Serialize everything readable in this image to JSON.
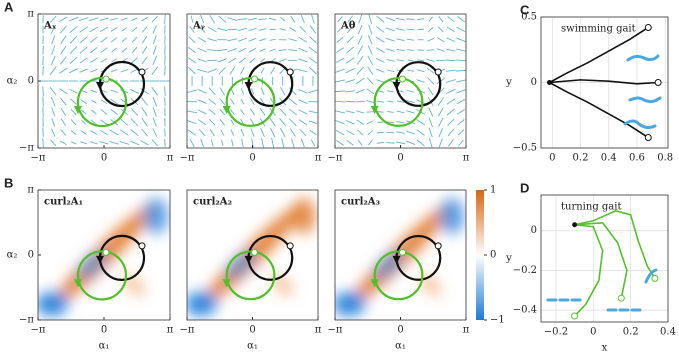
{
  "chart_data": [
    {
      "type": "quiver",
      "panel": "A",
      "title": "Aₓ",
      "ylabel": "α₂",
      "xlim": [
        -3.14159,
        3.14159
      ],
      "ylim": [
        -3.14159,
        3.14159
      ],
      "xticks": [
        {
          "value": -3.14159,
          "label": "−π"
        },
        0,
        {
          "value": 3.14159,
          "label": "π"
        }
      ],
      "yticks": [
        {
          "value": -3.14159,
          "label": "−π"
        },
        0,
        {
          "value": 3.14159,
          "label": "π"
        }
      ]
    },
    {
      "type": "quiver",
      "title": "Aᵧ",
      "xlim": [
        -3.14159,
        3.14159
      ],
      "ylim": [
        -3.14159,
        3.14159
      ],
      "xticks": [
        {
          "value": -3.14159,
          "label": "−π"
        },
        0,
        {
          "value": 3.14159,
          "label": "π"
        }
      ]
    },
    {
      "type": "quiver",
      "title": "Aθ",
      "xlim": [
        -3.14159,
        3.14159
      ],
      "ylim": [
        -3.14159,
        3.14159
      ],
      "xticks": [
        {
          "value": -3.14159,
          "label": "−π"
        },
        0,
        {
          "value": 3.14159,
          "label": "π"
        }
      ]
    },
    {
      "type": "heatmap",
      "panel": "B",
      "title": "curl₂A₁",
      "xlabel": "α₁",
      "ylabel": "α₂",
      "xlim": [
        -3.14159,
        3.14159
      ],
      "ylim": [
        -3.14159,
        3.14159
      ],
      "xticks": [
        {
          "value": -3.14159,
          "label": "−π"
        },
        0,
        {
          "value": 3.14159,
          "label": "π"
        }
      ],
      "yticks": [
        {
          "value": -3.14159,
          "label": "−π"
        },
        0,
        {
          "value": 3.14159,
          "label": "π"
        }
      ]
    },
    {
      "type": "heatmap",
      "title": "curl₂A₂",
      "xlabel": "α₁",
      "xlim": [
        -3.14159,
        3.14159
      ],
      "ylim": [
        -3.14159,
        3.14159
      ],
      "xticks": [
        {
          "value": -3.14159,
          "label": "−π"
        },
        0,
        {
          "value": 3.14159,
          "label": "π"
        }
      ]
    },
    {
      "type": "heatmap",
      "title": "curl₂A₃",
      "xlabel": "α₁",
      "xlim": [
        -3.14159,
        3.14159
      ],
      "ylim": [
        -3.14159,
        3.14159
      ],
      "xticks": [
        {
          "value": -3.14159,
          "label": "−π"
        },
        0,
        {
          "value": 3.14159,
          "label": "π"
        }
      ]
    },
    {
      "type": "colorbar",
      "ylim": [
        -1,
        1
      ],
      "yticks": [
        {
          "value": -1,
          "label": "−1"
        },
        0,
        1
      ]
    },
    {
      "type": "line",
      "panel": "C",
      "annotation": "swimming gait",
      "ylabel": "y",
      "grid": true,
      "xlim": [
        -0.08,
        0.82
      ],
      "ylim": [
        -0.5,
        0.5
      ],
      "xticks": [
        0,
        0.2,
        0.4,
        0.6,
        0.8
      ],
      "yticks": [
        {
          "value": -0.5,
          "label": "−0.5"
        },
        0,
        0.5
      ],
      "series": [
        {
          "color": "#111111",
          "x": [
            -0.02,
            0.1,
            0.25,
            0.4,
            0.55,
            0.68
          ],
          "values": [
            0,
            0.07,
            0.15,
            0.24,
            0.33,
            0.42
          ]
        },
        {
          "color": "#111111",
          "x": [
            -0.02,
            0.2,
            0.4,
            0.6,
            0.75
          ],
          "values": [
            0,
            0.02,
            0.01,
            -0.01,
            0
          ]
        },
        {
          "color": "#111111",
          "x": [
            -0.02,
            0.1,
            0.25,
            0.4,
            0.55,
            0.68
          ],
          "values": [
            0,
            -0.07,
            -0.15,
            -0.24,
            -0.33,
            -0.42
          ]
        }
      ]
    },
    {
      "type": "line",
      "panel": "D",
      "annotation": "turning gait",
      "xlabel": "x",
      "ylabel": "y",
      "grid": true,
      "xlim": [
        -0.28,
        0.4
      ],
      "ylim": [
        -0.46,
        0.18
      ],
      "xticks": [
        {
          "value": -0.2,
          "label": "−0.2"
        },
        0,
        0.2,
        0.4
      ],
      "yticks": [
        {
          "value": -0.4,
          "label": "−0.4"
        },
        {
          "value": -0.2,
          "label": "−0.2"
        },
        0
      ],
      "series": [
        {
          "color": "#55c02c",
          "x": [
            -0.1,
            0.0,
            0.12,
            0.2,
            0.24,
            0.29,
            0.33
          ],
          "values": [
            0.03,
            0.05,
            0.1,
            0.08,
            -0.05,
            -0.18,
            -0.24
          ]
        },
        {
          "color": "#55c02c",
          "x": [
            -0.1,
            0.05,
            0.13,
            0.18,
            0.15
          ],
          "values": [
            0.03,
            0.04,
            -0.06,
            -0.2,
            -0.34
          ]
        },
        {
          "color": "#55c02c",
          "x": [
            -0.1,
            0.0,
            0.05,
            0.03,
            -0.04,
            -0.1
          ],
          "values": [
            0.03,
            0.02,
            -0.1,
            -0.25,
            -0.37,
            -0.43
          ]
        }
      ]
    }
  ]
}
